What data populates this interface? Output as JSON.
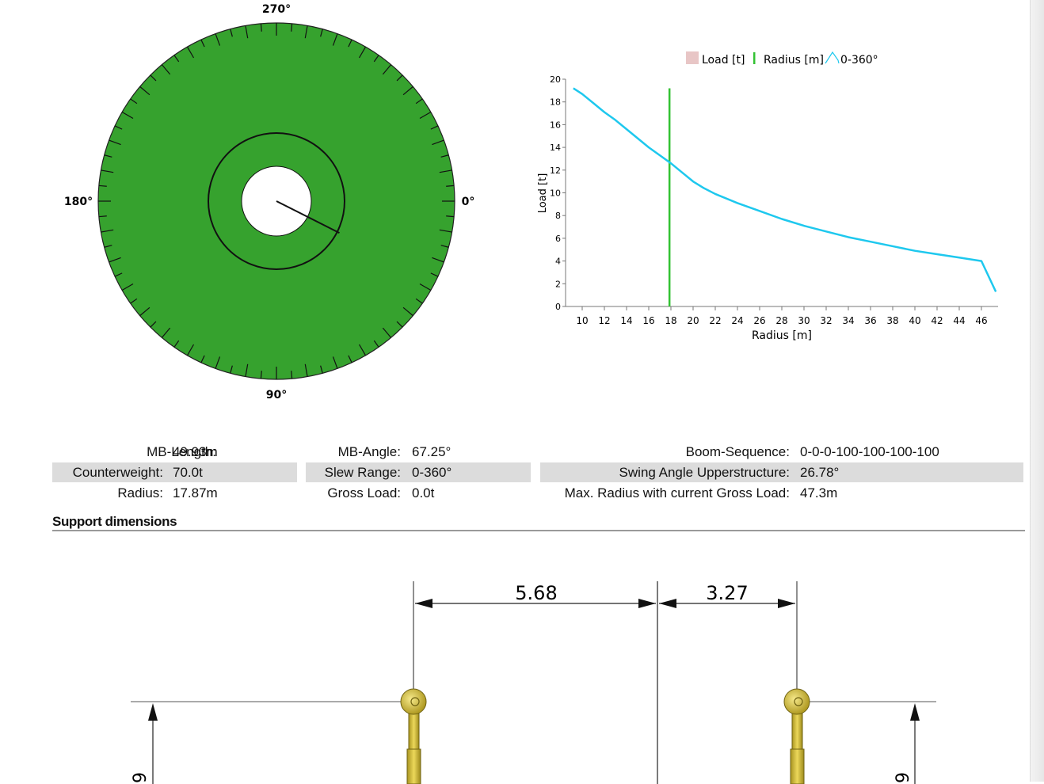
{
  "slew_diagram": {
    "label_top": "270°",
    "label_left": "180°",
    "label_right": "0°",
    "label_bottom": "90°",
    "fill_color": "#36a22e",
    "ticks": 72,
    "swing_angle_deg": 26.78
  },
  "chart_data": {
    "type": "line",
    "xlabel": "Radius [m]",
    "ylabel": "Load [t]",
    "xlim": [
      8.5,
      47.5
    ],
    "ylim": [
      0,
      20
    ],
    "x_ticks": [
      10,
      12,
      14,
      16,
      18,
      20,
      22,
      24,
      26,
      28,
      30,
      32,
      34,
      36,
      38,
      40,
      42,
      44,
      46
    ],
    "y_ticks": [
      0,
      2,
      4,
      6,
      8,
      10,
      12,
      14,
      16,
      18,
      20
    ],
    "legend": {
      "position": "top",
      "items": [
        {
          "name": "Load [t]",
          "kind": "box",
          "color": "#e8c6c6"
        },
        {
          "name": "Radius [m]",
          "kind": "bar",
          "color": "#33c233"
        },
        {
          "name": "0-360°",
          "kind": "line",
          "color": "#1ec8ee"
        }
      ]
    },
    "series": [
      {
        "name": "0-360°",
        "color": "#1ec8ee",
        "x": [
          9.2,
          10,
          11,
          12,
          13,
          14,
          15,
          16,
          17,
          18,
          19,
          20,
          21,
          22,
          24,
          26,
          28,
          30,
          32,
          34,
          36,
          38,
          40,
          42,
          44,
          46,
          47.3
        ],
        "y": [
          19.2,
          18.7,
          17.9,
          17.1,
          16.4,
          15.6,
          14.8,
          14.0,
          13.3,
          12.6,
          11.8,
          11.0,
          10.4,
          9.9,
          9.1,
          8.4,
          7.7,
          7.1,
          6.6,
          6.1,
          5.7,
          5.3,
          4.9,
          4.6,
          4.3,
          4.0,
          1.3
        ]
      }
    ],
    "radius_marker": {
      "name": "Radius [m]",
      "x": 17.87,
      "y_top": 19.2,
      "color": "#33c233"
    }
  },
  "info": {
    "col1": [
      {
        "label": "MB-Length:",
        "value": "49.93m"
      },
      {
        "label": "Counterweight:",
        "value": "70.0t"
      },
      {
        "label": "Radius:",
        "value": "17.87m"
      }
    ],
    "col2": [
      {
        "label": "MB-Angle:",
        "value": "67.25°"
      },
      {
        "label": "Slew Range:",
        "value": "0-360°"
      },
      {
        "label": "Gross Load:",
        "value": "0.0t"
      }
    ],
    "col3": [
      {
        "label": "Boom-Sequence:",
        "value": "0-0-0-100-100-100-100"
      },
      {
        "label": "Swing Angle Upperstructure:",
        "value": "26.78°"
      },
      {
        "label": "Max. Radius with current Gross Load:",
        "value": "47.3m"
      }
    ]
  },
  "support": {
    "title": "Support dimensions",
    "dim_left": "5.68",
    "dim_right": "3.27",
    "vdim_left": "9",
    "vdim_right": "9",
    "outrigger_color": "#d9c22e"
  }
}
